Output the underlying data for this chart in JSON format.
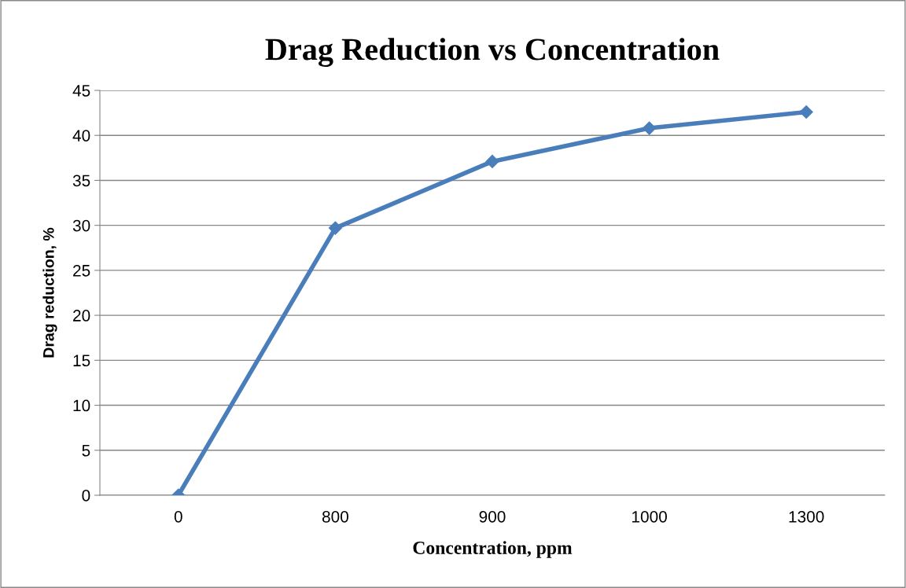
{
  "chart_data": {
    "type": "line",
    "title": "Drag Reduction vs Concentration",
    "xlabel": "Concentration, ppm",
    "ylabel": "Drag reduction, %",
    "categories": [
      "0",
      "800",
      "900",
      "1000",
      "1300"
    ],
    "series": [
      {
        "color": "#4a7ebb",
        "values": [
          0,
          29.7,
          37.1,
          40.8,
          42.6
        ]
      }
    ],
    "ylim": [
      0,
      45
    ],
    "yticks": [
      0,
      5,
      10,
      15,
      20,
      25,
      30,
      35,
      40,
      45
    ],
    "grid": "y",
    "marker": "diamond",
    "line_style": "solid"
  }
}
